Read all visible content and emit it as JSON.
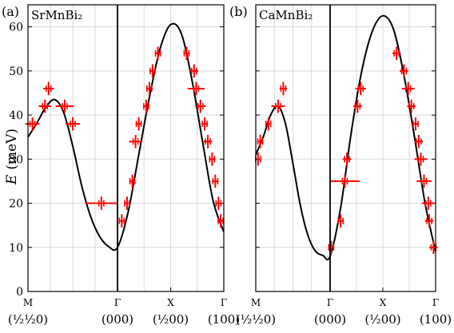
{
  "figure": {
    "ylabel": "E",
    "ylabel_unit": "(meV)"
  },
  "chart_data": [
    {
      "type": "line",
      "panel_label": "(a)",
      "title": "SrMnBi₂",
      "ylim": [
        0,
        65
      ],
      "yticks": [
        "0",
        "10",
        "20",
        "30",
        "40",
        "50",
        "60"
      ],
      "grid": true,
      "xticks": [
        {
          "x": 0.0,
          "top": "M",
          "bottom": "(½½0)"
        },
        {
          "x": 1.0,
          "top": "Γ",
          "bottom": "(000)"
        },
        {
          "x": 1.5,
          "top": "X",
          "bottom": "(½00)"
        },
        {
          "x": 2.0,
          "top": "Γ",
          "bottom": "(100)"
        }
      ],
      "x_divider": 1.0,
      "dispersion": {
        "x": [
          0.0,
          0.1,
          0.2,
          0.3,
          0.4,
          0.5,
          0.6,
          0.7,
          0.8,
          0.9,
          1.0,
          1.1,
          1.2,
          1.3,
          1.4,
          1.5,
          1.6,
          1.7,
          1.8,
          1.9,
          2.0
        ],
        "y": [
          35.0,
          38.2,
          41.8,
          43.5,
          40.5,
          33.0,
          24.0,
          17.0,
          12.5,
          10.2,
          10.0,
          18.0,
          31.0,
          44.0,
          55.0,
          60.5,
          58.5,
          48.0,
          34.0,
          20.5,
          13.5
        ]
      },
      "points": [
        {
          "x": 0.05,
          "y": 38,
          "xerr": 0.08,
          "yerr": 0.6
        },
        {
          "x": 0.23,
          "y": 46,
          "xerr": 0.06,
          "yerr": 0.6
        },
        {
          "x": 0.19,
          "y": 42,
          "xerr": 0.07,
          "yerr": 0.6
        },
        {
          "x": 0.41,
          "y": 42,
          "xerr": 0.1,
          "yerr": 0.6
        },
        {
          "x": 0.5,
          "y": 38,
          "xerr": 0.08,
          "yerr": 0.6
        },
        {
          "x": 0.82,
          "y": 20,
          "xerr": 0.18,
          "yerr": 0.6
        },
        {
          "x": 1.04,
          "y": 16,
          "xerr": 0.02,
          "yerr": 0.6
        },
        {
          "x": 1.09,
          "y": 20,
          "xerr": 0.03,
          "yerr": 0.6
        },
        {
          "x": 1.14,
          "y": 25,
          "xerr": 0.02,
          "yerr": 0.6
        },
        {
          "x": 1.17,
          "y": 34,
          "xerr": 0.06,
          "yerr": 0.6
        },
        {
          "x": 1.2,
          "y": 38,
          "xerr": 0.03,
          "yerr": 0.6
        },
        {
          "x": 1.27,
          "y": 42,
          "xerr": 0.03,
          "yerr": 0.6
        },
        {
          "x": 1.3,
          "y": 46,
          "xerr": 0.03,
          "yerr": 0.6
        },
        {
          "x": 1.33,
          "y": 50,
          "xerr": 0.03,
          "yerr": 0.6
        },
        {
          "x": 1.38,
          "y": 54,
          "xerr": 0.03,
          "yerr": 0.6
        },
        {
          "x": 1.65,
          "y": 54,
          "xerr": 0.03,
          "yerr": 0.6
        },
        {
          "x": 1.72,
          "y": 50,
          "xerr": 0.04,
          "yerr": 0.6
        },
        {
          "x": 1.74,
          "y": 46,
          "xerr": 0.08,
          "yerr": 0.6
        },
        {
          "x": 1.78,
          "y": 42,
          "xerr": 0.05,
          "yerr": 0.6
        },
        {
          "x": 1.82,
          "y": 38,
          "xerr": 0.03,
          "yerr": 0.6
        },
        {
          "x": 1.85,
          "y": 34,
          "xerr": 0.04,
          "yerr": 0.6
        },
        {
          "x": 1.89,
          "y": 30,
          "xerr": 0.03,
          "yerr": 0.6
        },
        {
          "x": 1.92,
          "y": 25,
          "xerr": 0.03,
          "yerr": 0.6
        },
        {
          "x": 1.95,
          "y": 20,
          "xerr": 0.03,
          "yerr": 0.6
        },
        {
          "x": 1.97,
          "y": 16,
          "xerr": 0.02,
          "yerr": 0.6
        }
      ]
    },
    {
      "type": "line",
      "panel_label": "(b)",
      "title": "CaMnBi₂",
      "ylim": [
        0,
        65
      ],
      "yticks": [
        "0",
        "10",
        "20",
        "30",
        "40",
        "50",
        "60"
      ],
      "grid": true,
      "xticks": [
        {
          "x": 0.0,
          "top": "M",
          "bottom": "(½½0)"
        },
        {
          "x": 1.0,
          "top": "Γ",
          "bottom": "(000)"
        },
        {
          "x": 1.5,
          "top": "X",
          "bottom": "(½00)"
        },
        {
          "x": 2.0,
          "top": "Γ",
          "bottom": "(100)"
        }
      ],
      "x_divider": 1.0,
      "dispersion": {
        "x": [
          0.0,
          0.1,
          0.2,
          0.3,
          0.4,
          0.5,
          0.6,
          0.7,
          0.8,
          0.9,
          1.0,
          1.1,
          1.2,
          1.3,
          1.4,
          1.5,
          1.6,
          1.7,
          1.8,
          1.9,
          2.0
        ],
        "y": [
          31.0,
          35.0,
          40.0,
          42.0,
          38.0,
          29.0,
          19.5,
          12.8,
          9.2,
          8.2,
          8.0,
          19.0,
          36.0,
          50.0,
          59.0,
          62.5,
          59.5,
          49.0,
          35.0,
          20.0,
          9.0
        ]
      },
      "points": [
        {
          "x": 0.03,
          "y": 30,
          "xerr": 0.04,
          "yerr": 0.6
        },
        {
          "x": 0.06,
          "y": 34,
          "xerr": 0.04,
          "yerr": 0.6
        },
        {
          "x": 0.17,
          "y": 38,
          "xerr": 0.02,
          "yerr": 0.6
        },
        {
          "x": 0.3,
          "y": 42,
          "xerr": 0.09,
          "yerr": 0.6
        },
        {
          "x": 0.37,
          "y": 46,
          "xerr": 0.05,
          "yerr": 0.6
        },
        {
          "x": 1.01,
          "y": 10,
          "xerr": 0.02,
          "yerr": 0.6
        },
        {
          "x": 1.1,
          "y": 16,
          "xerr": 0.03,
          "yerr": 0.6
        },
        {
          "x": 1.14,
          "y": 25,
          "xerr": 0.14,
          "yerr": 0.6
        },
        {
          "x": 1.16,
          "y": 30,
          "xerr": 0.04,
          "yerr": 0.6
        },
        {
          "x": 1.26,
          "y": 42,
          "xerr": 0.04,
          "yerr": 0.6
        },
        {
          "x": 1.29,
          "y": 46,
          "xerr": 0.05,
          "yerr": 0.6
        },
        {
          "x": 1.63,
          "y": 54,
          "xerr": 0.04,
          "yerr": 0.6
        },
        {
          "x": 1.7,
          "y": 50,
          "xerr": 0.04,
          "yerr": 0.6
        },
        {
          "x": 1.74,
          "y": 46,
          "xerr": 0.06,
          "yerr": 0.6
        },
        {
          "x": 1.77,
          "y": 42,
          "xerr": 0.04,
          "yerr": 0.6
        },
        {
          "x": 1.81,
          "y": 38,
          "xerr": 0.03,
          "yerr": 0.6
        },
        {
          "x": 1.84,
          "y": 34,
          "xerr": 0.04,
          "yerr": 0.6
        },
        {
          "x": 1.86,
          "y": 30,
          "xerr": 0.06,
          "yerr": 0.6
        },
        {
          "x": 1.89,
          "y": 25,
          "xerr": 0.07,
          "yerr": 0.6
        },
        {
          "x": 1.93,
          "y": 20,
          "xerr": 0.06,
          "yerr": 0.6
        },
        {
          "x": 1.94,
          "y": 16,
          "xerr": 0.04,
          "yerr": 0.6
        },
        {
          "x": 1.98,
          "y": 10,
          "xerr": 0.04,
          "yerr": 0.6
        }
      ]
    }
  ]
}
